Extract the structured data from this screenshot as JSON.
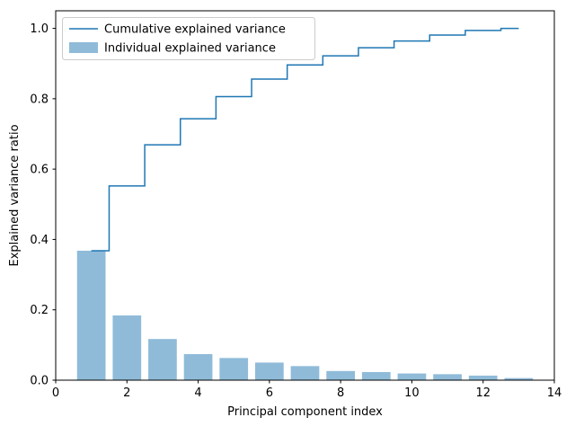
{
  "figure": {
    "background": "#ffffff",
    "line_color": "#1f77b4",
    "bar_color": "#1f77b4",
    "bar_opacity": 0.5,
    "legend_border_color": "#cccccc"
  },
  "chart_data": {
    "type": "bar",
    "title": "",
    "xlabel": "Principal component index",
    "ylabel": "Explained variance ratio",
    "x": [
      1,
      2,
      3,
      4,
      5,
      6,
      7,
      8,
      9,
      10,
      11,
      12,
      13
    ],
    "series": [
      {
        "name": "Individual explained variance",
        "type": "bar",
        "color": "#1f77b4",
        "opacity": 0.5,
        "values": [
          0.368,
          0.184,
          0.117,
          0.074,
          0.063,
          0.05,
          0.04,
          0.026,
          0.023,
          0.019,
          0.017,
          0.013,
          0.006
        ]
      },
      {
        "name": "Cumulative explained variance",
        "type": "step-mid",
        "color": "#1f77b4",
        "values": [
          0.368,
          0.552,
          0.669,
          0.743,
          0.806,
          0.856,
          0.896,
          0.922,
          0.945,
          0.964,
          0.981,
          0.994,
          1.0
        ]
      }
    ],
    "xlim": [
      0,
      14
    ],
    "ylim": [
      0,
      1.05
    ],
    "x_ticks": [
      0,
      2,
      4,
      6,
      8,
      10,
      12,
      14
    ],
    "x_tick_labels": [
      "0",
      "2",
      "4",
      "6",
      "8",
      "10",
      "12",
      "14"
    ],
    "y_ticks": [
      0.0,
      0.2,
      0.4,
      0.6,
      0.8,
      1.0
    ],
    "y_tick_labels": [
      "0.0",
      "0.2",
      "0.4",
      "0.6",
      "0.8",
      "1.0"
    ],
    "bar_width": 0.8,
    "grid": false,
    "legend": {
      "position": "upper left",
      "entries": [
        "Cumulative explained variance",
        "Individual explained variance"
      ]
    }
  }
}
